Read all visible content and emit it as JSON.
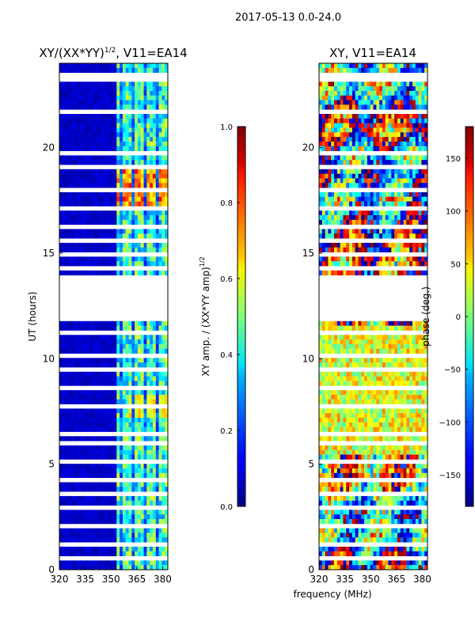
{
  "suptitle": "2017-05-13 0.0-24.0",
  "shared_xlabel": "frequency (MHz)",
  "chart_data": [
    {
      "type": "heatmap",
      "title": "XY/(XX*YY)",
      "title_exponent": "1/2",
      "title_suffix": ", V11=EA14",
      "ylabel": "UT (hours)",
      "xlim": [
        320,
        383
      ],
      "ylim": [
        0,
        24
      ],
      "xticks": [
        "320",
        "335",
        "350",
        "365",
        "380"
      ],
      "yticks": [
        "0",
        "5",
        "10",
        "15",
        "20"
      ],
      "colorbar": {
        "label": "XY amp. / (XX*YY amp)",
        "label_exponent": "1/2",
        "range": [
          0.0,
          1.0
        ],
        "ticks": [
          "0.0",
          "0.2",
          "0.4",
          "0.6",
          "0.8",
          "1.0"
        ],
        "colormap": "jet"
      },
      "gap_hours": [
        11.7,
        13.9
      ]
    },
    {
      "type": "heatmap",
      "title": "XY, V11=EA14",
      "ylabel": "",
      "xlim": [
        320,
        383
      ],
      "ylim": [
        0,
        24
      ],
      "xticks": [
        "320",
        "335",
        "350",
        "365",
        "380"
      ],
      "yticks": [
        "0",
        "5",
        "10",
        "15",
        "20"
      ],
      "colorbar": {
        "label": "phase (deg.)",
        "range": [
          -180,
          180
        ],
        "ticks": [
          "−150",
          "−100",
          "−50",
          "0",
          "50",
          "100",
          "150"
        ],
        "colormap": "jet"
      },
      "gap_hours": [
        11.7,
        13.9
      ]
    }
  ]
}
